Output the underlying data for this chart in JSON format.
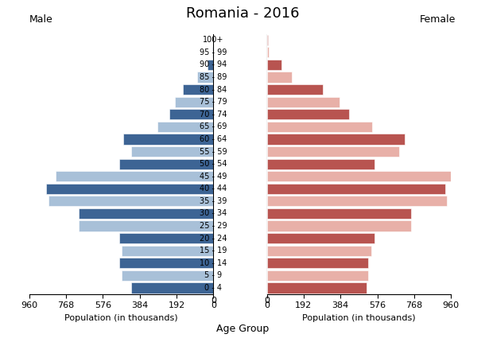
{
  "title": "Romania - 2016",
  "age_groups": [
    "0 - 4",
    "5 - 9",
    "10 - 14",
    "15 - 19",
    "20 - 24",
    "25 - 29",
    "30 - 34",
    "35 - 39",
    "40 - 44",
    "45 - 49",
    "50 - 54",
    "55 - 59",
    "60 - 64",
    "65 - 69",
    "70 - 74",
    "75 - 79",
    "80 - 84",
    "85 - 89",
    "90 - 94",
    "95 - 99",
    "100+"
  ],
  "male": [
    430,
    480,
    490,
    480,
    490,
    700,
    700,
    860,
    870,
    820,
    490,
    430,
    470,
    290,
    230,
    200,
    160,
    85,
    30,
    5,
    2
  ],
  "female": [
    520,
    530,
    530,
    545,
    560,
    750,
    750,
    940,
    930,
    960,
    560,
    690,
    720,
    550,
    430,
    380,
    290,
    130,
    75,
    10,
    5
  ],
  "xlabel_left": "Population (in thousands)",
  "xlabel_center": "Age Group",
  "xlabel_right": "Population (in thousands)",
  "label_left": "Male",
  "label_right": "Female",
  "xlim": 960,
  "xticks": [
    0,
    192,
    384,
    576,
    768,
    960
  ]
}
